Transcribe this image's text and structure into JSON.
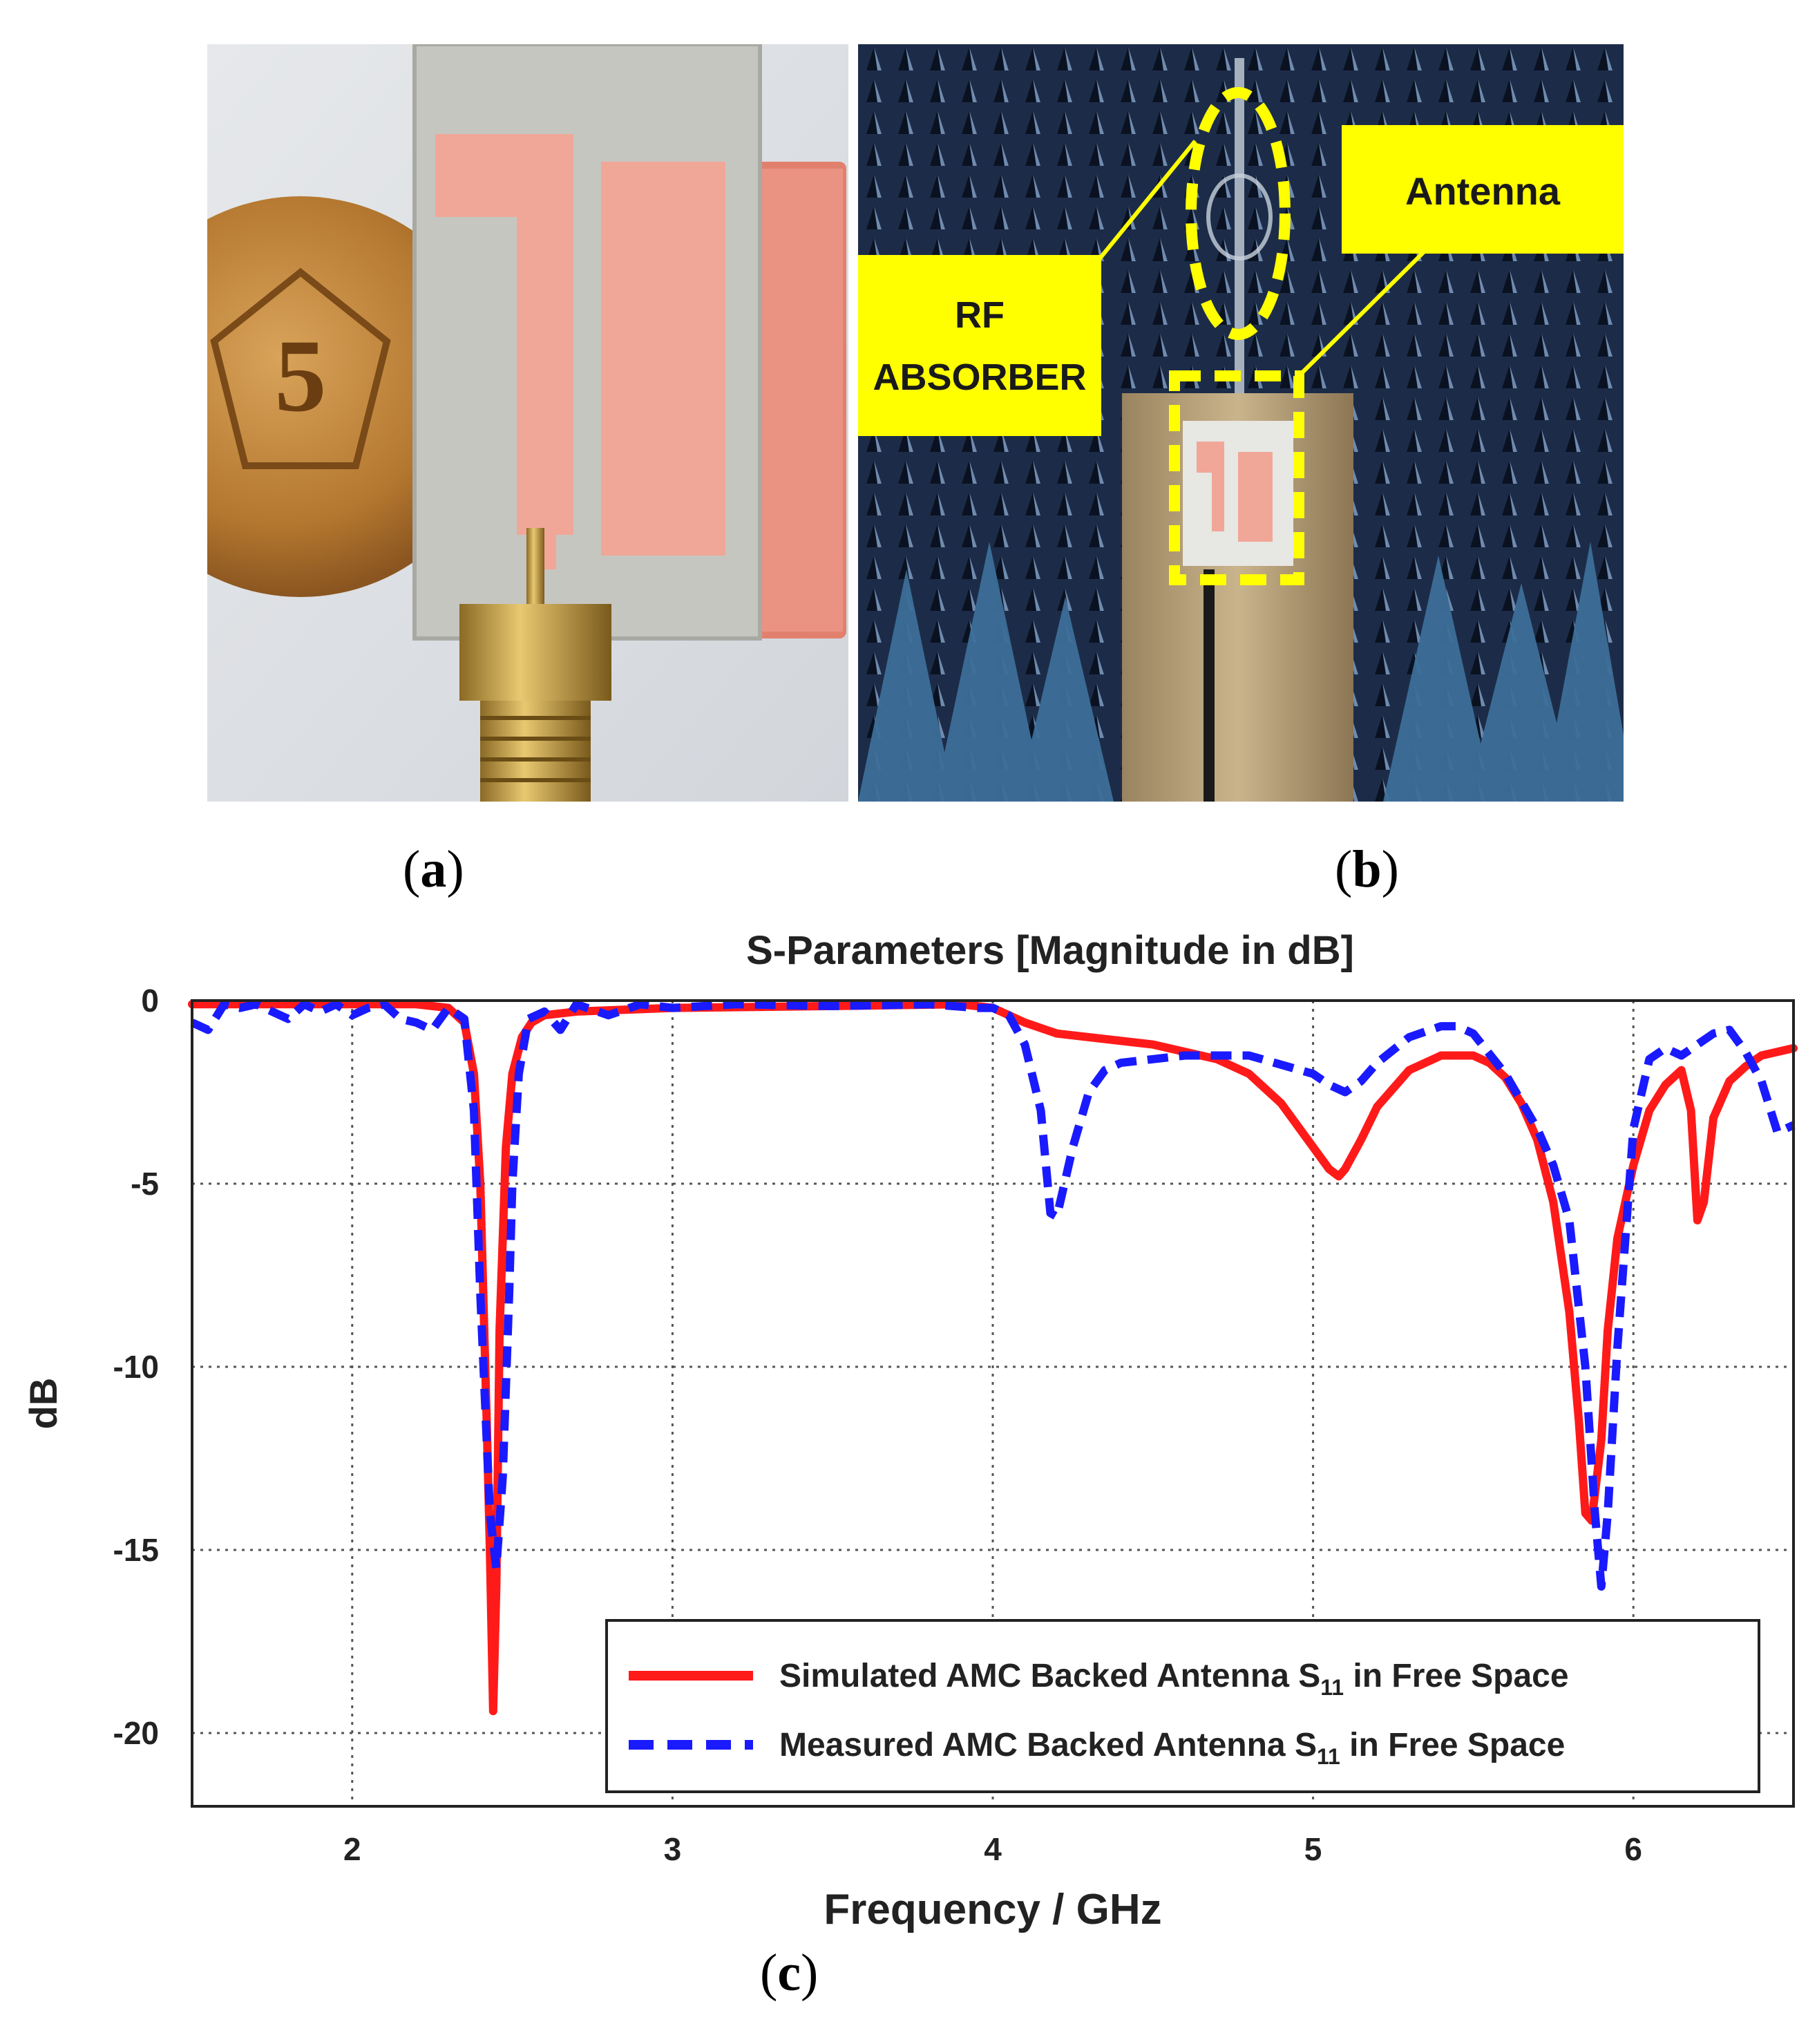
{
  "panels": {
    "a": {
      "caption_label": "a",
      "coin_number": "5"
    },
    "b": {
      "caption_label": "b",
      "callout_rf_line1": "RF",
      "callout_rf_line2": "ABSORBER",
      "callout_antenna": "Antenna"
    },
    "c": {
      "caption_label": "c"
    }
  },
  "colors": {
    "simulated": "#ff1a1a",
    "measured": "#1a1aff",
    "callout_fill": "#ffff00",
    "substrate": "#c9c9c4",
    "copper": "#f2a898",
    "brass": "#c9a24a"
  },
  "chart_data": {
    "type": "line",
    "title": "S-Parameters [Magnitude in dB]",
    "xlabel": "Frequency / GHz",
    "ylabel": "dB",
    "xlim": [
      1.5,
      6.5
    ],
    "ylim": [
      -22,
      0
    ],
    "xticks": [
      2,
      3,
      4,
      5,
      6
    ],
    "yticks": [
      0,
      -5,
      -10,
      -15,
      -20
    ],
    "grid": true,
    "legend_position": "bottom-right",
    "legend": [
      {
        "prefix": "Simulated AMC Backed Antenna S",
        "sub": "11",
        "suffix": " in Free Space"
      },
      {
        "prefix": "Measured AMC Backed Antenna S",
        "sub": "11",
        "suffix": " in Free Space"
      }
    ],
    "series": [
      {
        "name": "Simulated AMC Backed Antenna S11 in Free Space",
        "style": "solid",
        "x": [
          1.5,
          1.7,
          2.0,
          2.2,
          2.3,
          2.35,
          2.38,
          2.4,
          2.42,
          2.43,
          2.44,
          2.45,
          2.46,
          2.48,
          2.5,
          2.53,
          2.56,
          2.6,
          2.7,
          3.0,
          3.5,
          3.9,
          4.0,
          4.1,
          4.2,
          4.5,
          4.7,
          4.8,
          4.9,
          5.0,
          5.05,
          5.08,
          5.1,
          5.15,
          5.2,
          5.3,
          5.4,
          5.5,
          5.55,
          5.6,
          5.65,
          5.7,
          5.75,
          5.8,
          5.83,
          5.85,
          5.87,
          5.9,
          5.92,
          5.95,
          6.0,
          6.05,
          6.1,
          6.15,
          6.18,
          6.2,
          6.22,
          6.25,
          6.3,
          6.35,
          6.4,
          6.5
        ],
        "y": [
          -0.1,
          -0.1,
          -0.1,
          -0.1,
          -0.2,
          -0.6,
          -2.0,
          -5.0,
          -11.5,
          -15.0,
          -19.4,
          -16.0,
          -9.0,
          -4.0,
          -2.0,
          -1.0,
          -0.6,
          -0.4,
          -0.3,
          -0.2,
          -0.15,
          -0.1,
          -0.2,
          -0.6,
          -0.9,
          -1.2,
          -1.6,
          -2.0,
          -2.8,
          -4.0,
          -4.6,
          -4.8,
          -4.6,
          -3.8,
          -2.9,
          -1.9,
          -1.5,
          -1.5,
          -1.7,
          -2.1,
          -2.8,
          -3.8,
          -5.5,
          -8.5,
          -11.5,
          -14.0,
          -14.2,
          -12.0,
          -9.0,
          -6.5,
          -4.5,
          -3.0,
          -2.3,
          -1.9,
          -3.0,
          -6.0,
          -5.5,
          -3.2,
          -2.2,
          -1.8,
          -1.5,
          -1.3
        ]
      },
      {
        "name": "Measured AMC Backed Antenna S11 in Free Space",
        "style": "dashed",
        "x": [
          1.5,
          1.55,
          1.6,
          1.65,
          1.7,
          1.75,
          1.8,
          1.85,
          1.9,
          1.95,
          2.0,
          2.05,
          2.1,
          2.15,
          2.2,
          2.25,
          2.3,
          2.35,
          2.38,
          2.4,
          2.43,
          2.45,
          2.47,
          2.49,
          2.5,
          2.52,
          2.55,
          2.6,
          2.65,
          2.7,
          2.8,
          2.9,
          3.0,
          3.2,
          3.5,
          3.8,
          3.95,
          4.0,
          4.05,
          4.1,
          4.15,
          4.18,
          4.2,
          4.25,
          4.3,
          4.35,
          4.4,
          4.6,
          4.8,
          5.0,
          5.05,
          5.1,
          5.15,
          5.2,
          5.3,
          5.4,
          5.45,
          5.5,
          5.6,
          5.7,
          5.75,
          5.8,
          5.85,
          5.88,
          5.9,
          5.92,
          5.95,
          6.0,
          6.05,
          6.1,
          6.15,
          6.2,
          6.25,
          6.3,
          6.35,
          6.4,
          6.45,
          6.5
        ],
        "y": [
          -0.6,
          -0.8,
          -0.1,
          -0.2,
          -0.1,
          -0.3,
          -0.5,
          -0.1,
          -0.3,
          -0.1,
          -0.4,
          -0.2,
          -0.1,
          -0.5,
          -0.6,
          -0.8,
          -0.2,
          -0.5,
          -3.0,
          -8.0,
          -14.0,
          -15.5,
          -13.0,
          -8.0,
          -5.0,
          -2.0,
          -0.5,
          -0.3,
          -0.8,
          -0.1,
          -0.4,
          -0.1,
          -0.2,
          -0.1,
          -0.15,
          -0.1,
          -0.2,
          -0.2,
          -0.4,
          -1.2,
          -3.0,
          -5.8,
          -5.9,
          -4.0,
          -2.5,
          -1.9,
          -1.7,
          -1.5,
          -1.5,
          -2.0,
          -2.3,
          -2.5,
          -2.2,
          -1.7,
          -1.0,
          -0.7,
          -0.7,
          -0.9,
          -2.0,
          -3.5,
          -4.5,
          -6.0,
          -10.0,
          -14.0,
          -16.0,
          -14.0,
          -9.5,
          -3.5,
          -1.6,
          -1.3,
          -1.5,
          -1.2,
          -0.9,
          -0.8,
          -1.4,
          -2.2,
          -3.6,
          -3.4
        ]
      }
    ]
  }
}
